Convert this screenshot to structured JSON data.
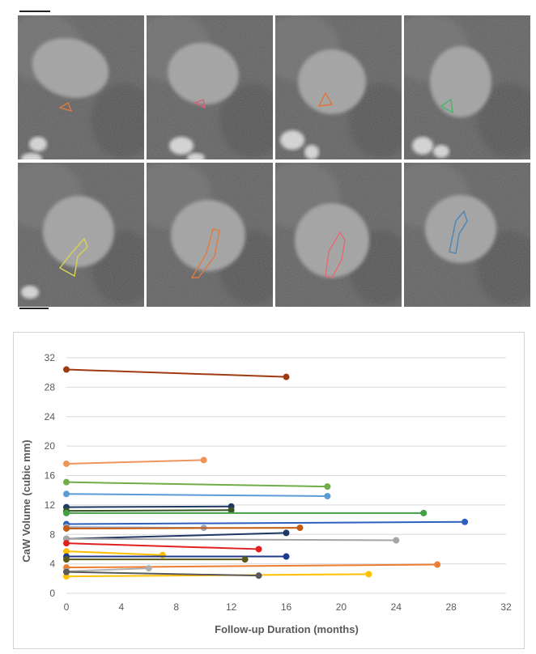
{
  "figure": {
    "ct_panels": [
      {
        "id": "p1",
        "roi_color": "#e07a45"
      },
      {
        "id": "p2",
        "roi_color": "#d9607a"
      },
      {
        "id": "p3",
        "roi_color": "#e0743a"
      },
      {
        "id": "p4",
        "roi_color": "#4cb36a"
      },
      {
        "id": "p5",
        "roi_color": "#d8d452"
      },
      {
        "id": "p6",
        "roi_color": "#e07a45"
      },
      {
        "id": "p7",
        "roi_color": "#e46a72"
      },
      {
        "id": "p8",
        "roi_color": "#4a86b8"
      }
    ]
  },
  "chart_data": {
    "type": "line",
    "xlabel": "Follow-up Duration (months)",
    "ylabel": "CaW Volume (cubic mm)",
    "xlim": [
      0,
      32
    ],
    "ylim": [
      0,
      32
    ],
    "xticks": [
      "0",
      "4",
      "8",
      "12",
      "16",
      "20",
      "24",
      "28",
      "32"
    ],
    "yticks": [
      "0",
      "4",
      "8",
      "12",
      "16",
      "20",
      "24",
      "28",
      "32"
    ],
    "grid": "horizontal",
    "series": [
      {
        "color": "#9e3a10",
        "values": [
          [
            0,
            30.4
          ],
          [
            16,
            29.4
          ]
        ]
      },
      {
        "color": "#f0955a",
        "values": [
          [
            0,
            17.6
          ],
          [
            10,
            18.1
          ]
        ]
      },
      {
        "color": "#70ad47",
        "values": [
          [
            0,
            15.1
          ],
          [
            19,
            14.5
          ]
        ]
      },
      {
        "color": "#5b9bd5",
        "values": [
          [
            0,
            13.5
          ],
          [
            19,
            13.2
          ]
        ]
      },
      {
        "color": "#1f3864",
        "values": [
          [
            0,
            11.7
          ],
          [
            12,
            11.8
          ]
        ]
      },
      {
        "color": "#375623",
        "values": [
          [
            0,
            11.2
          ],
          [
            12,
            11.3
          ]
        ]
      },
      {
        "color": "#43a047",
        "values": [
          [
            0,
            10.9
          ],
          [
            26,
            10.9
          ]
        ]
      },
      {
        "color": "#2e5fbf",
        "values": [
          [
            0,
            9.4
          ],
          [
            29,
            9.7
          ]
        ]
      },
      {
        "color": "#9da8c0",
        "values": [
          [
            0,
            9.0
          ],
          [
            10,
            8.9
          ]
        ]
      },
      {
        "color": "#c55a11",
        "values": [
          [
            0,
            8.8
          ],
          [
            17,
            8.9
          ]
        ]
      },
      {
        "color": "#203864",
        "values": [
          [
            0,
            7.4
          ],
          [
            16,
            8.2
          ]
        ]
      },
      {
        "color": "#a5a5a5",
        "values": [
          [
            0,
            7.4
          ],
          [
            24,
            7.2
          ]
        ]
      },
      {
        "color": "#e02020",
        "values": [
          [
            0,
            6.8
          ],
          [
            14,
            6.0
          ]
        ]
      },
      {
        "color": "#ffc000",
        "values": [
          [
            0,
            5.7
          ],
          [
            7,
            5.2
          ]
        ]
      },
      {
        "color": "#1f3a8a",
        "values": [
          [
            0,
            5.0
          ],
          [
            16,
            5.0
          ]
        ]
      },
      {
        "color": "#5a5a1a",
        "values": [
          [
            0,
            4.6
          ],
          [
            13,
            4.6
          ]
        ]
      },
      {
        "color": "#ed7d31",
        "values": [
          [
            0,
            3.5
          ],
          [
            27,
            3.9
          ]
        ]
      },
      {
        "color": "#b0b0b0",
        "values": [
          [
            0,
            3.0
          ],
          [
            6,
            3.4
          ]
        ]
      },
      {
        "color": "#ffc000",
        "values": [
          [
            0,
            2.3
          ],
          [
            22,
            2.6
          ]
        ]
      },
      {
        "color": "#595959",
        "values": [
          [
            0,
            2.9
          ],
          [
            14,
            2.4
          ]
        ]
      }
    ]
  }
}
